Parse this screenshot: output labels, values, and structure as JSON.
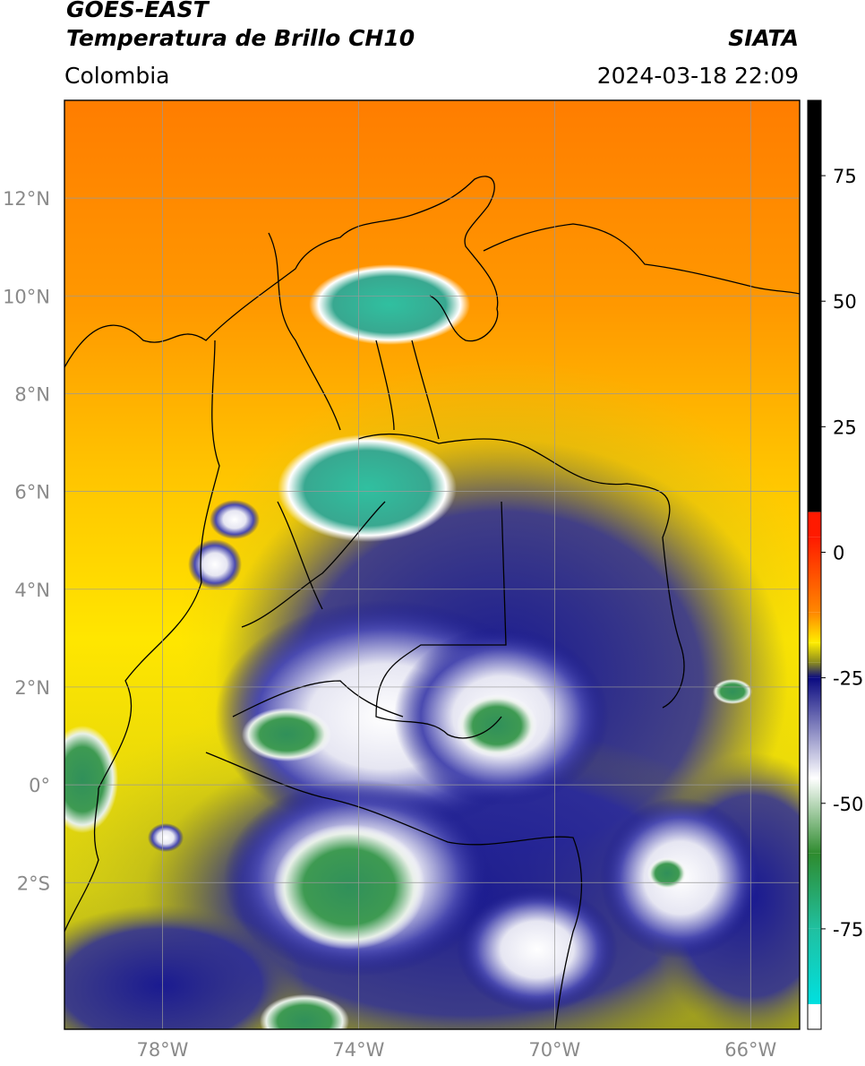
{
  "header": {
    "satellite": "GOES-EAST",
    "product": "Temperatura de Brillo CH10",
    "brand": "SIATA",
    "region": "Colombia",
    "datetime": "2024-03-18 22:09"
  },
  "map": {
    "lon_range": [
      -80,
      -65
    ],
    "lat_range": [
      -5,
      14
    ],
    "lat_ticks": [
      {
        "value": 12,
        "label": "12°N"
      },
      {
        "value": 10,
        "label": "10°N"
      },
      {
        "value": 8,
        "label": "8°N"
      },
      {
        "value": 6,
        "label": "6°N"
      },
      {
        "value": 4,
        "label": "4°N"
      },
      {
        "value": 2,
        "label": "2°N"
      },
      {
        "value": 0,
        "label": "0°"
      },
      {
        "value": -2,
        "label": "2°S"
      }
    ],
    "lon_ticks": [
      {
        "value": -78,
        "label": "78°W"
      },
      {
        "value": -74,
        "label": "74°W"
      },
      {
        "value": -70,
        "label": "70°W"
      },
      {
        "value": -66,
        "label": "66°W"
      }
    ],
    "grid": true
  },
  "colorbar": {
    "range": [
      -95,
      90
    ],
    "ticks": [
      {
        "value": 75,
        "label": "75"
      },
      {
        "value": 50,
        "label": "50"
      },
      {
        "value": 25,
        "label": "25"
      },
      {
        "value": 0,
        "label": "0"
      },
      {
        "value": -25,
        "label": "-25"
      },
      {
        "value": -50,
        "label": "-50"
      },
      {
        "value": -75,
        "label": "-75"
      }
    ],
    "colors": {
      "black": "#000000",
      "red": "#ff1a00",
      "orange": "#ff8800",
      "yellow": "#ffee00",
      "olive": "#8a8a20",
      "navy": "#0a0a80",
      "white": "#ffffff",
      "green": "#2e8b2e",
      "teal": "#20c0a0",
      "cyan": "#00e0e0"
    }
  }
}
